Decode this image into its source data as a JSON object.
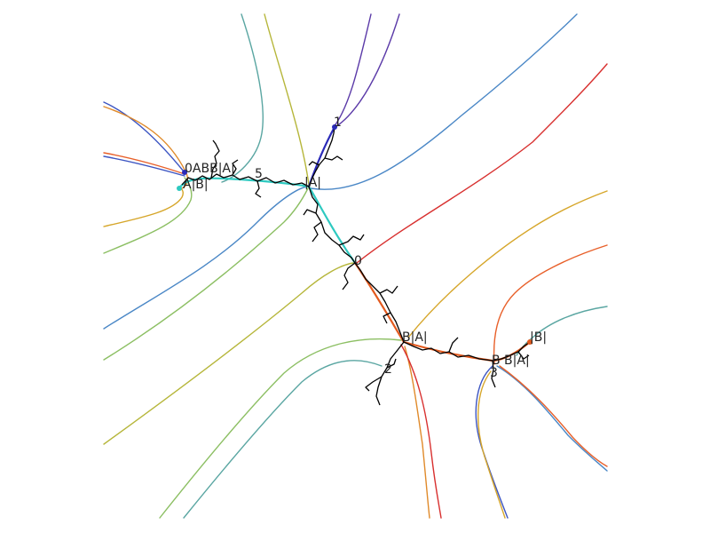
{
  "labels": {
    "top_cusp": "1",
    "left_upper": "0ABB|A|",
    "left_lower": "A|B|",
    "left_mid": "5",
    "center_upper": "|A|",
    "center": "0",
    "right_center": "B|A|",
    "far_right_upper": "|B|",
    "far_right_mid": "B B|A|",
    "low_mid": "2",
    "low_right": "3"
  },
  "colors": {
    "black_tree": "#000000",
    "cyan_path": "#2ec9c0",
    "blue_path": "#2a2ab8",
    "orange_path": "#e35a1e",
    "purple": "#5b3aa8",
    "blue": "#4a87c6",
    "red": "#d8302f",
    "olive": "#b6b63a",
    "green": "#8cbf63",
    "teal": "#5aa6a2",
    "orange": "#e08a2a",
    "gold": "#d6a62a",
    "orangered": "#e8602a",
    "navy": "#3c55c2",
    "sage": "#6ea88a"
  }
}
